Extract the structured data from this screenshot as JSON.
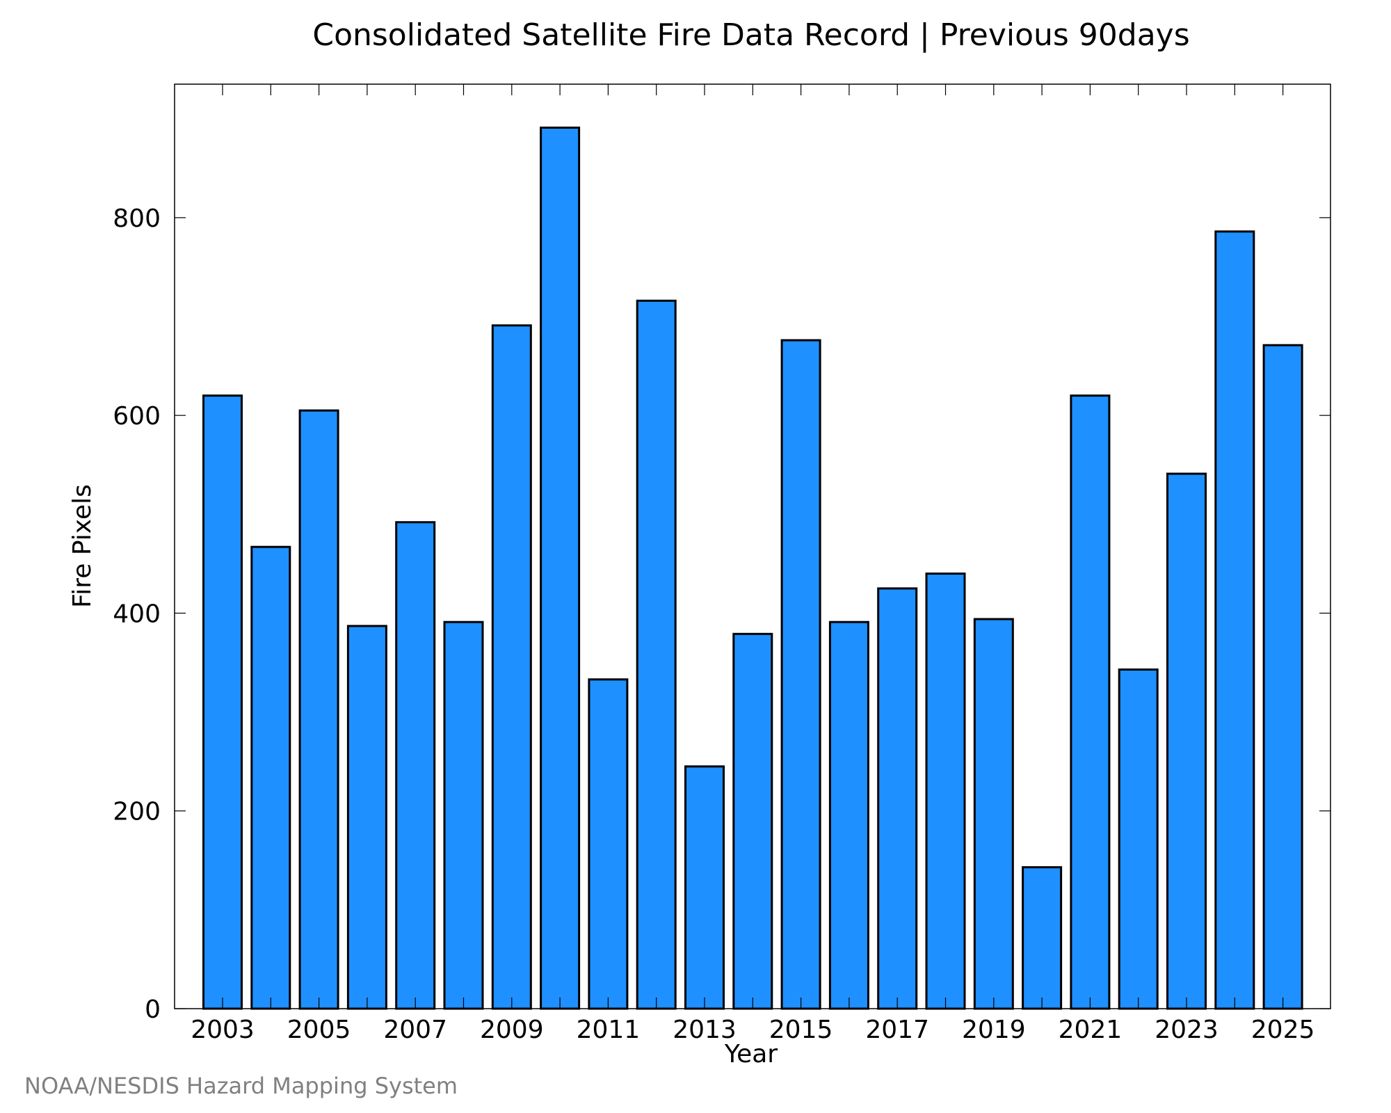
{
  "chart_data": {
    "type": "bar",
    "title": "Consolidated Satellite Fire Data Record | Previous 90days",
    "xlabel": "Year",
    "ylabel": "Fire Pixels",
    "categories": [
      "2003",
      "2004",
      "2005",
      "2006",
      "2007",
      "2008",
      "2009",
      "2010",
      "2011",
      "2012",
      "2013",
      "2014",
      "2015",
      "2016",
      "2017",
      "2018",
      "2019",
      "2020",
      "2021",
      "2022",
      "2023",
      "2024",
      "2025"
    ],
    "values": [
      620,
      467,
      605,
      387,
      492,
      391,
      691,
      891,
      333,
      716,
      245,
      379,
      676,
      391,
      425,
      440,
      394,
      143,
      620,
      343,
      541,
      786,
      671
    ],
    "x_tick_labels": [
      "2003",
      "2005",
      "2007",
      "2009",
      "2011",
      "2013",
      "2015",
      "2017",
      "2019",
      "2021",
      "2023",
      "2025"
    ],
    "y_ticks": [
      0,
      200,
      400,
      600,
      800
    ],
    "ylim": [
      0,
      935
    ],
    "grid": false,
    "bar_color": "#1e90ff",
    "bar_edge_color": "#000000"
  },
  "credit": "NOAA/NESDIS Hazard Mapping System"
}
